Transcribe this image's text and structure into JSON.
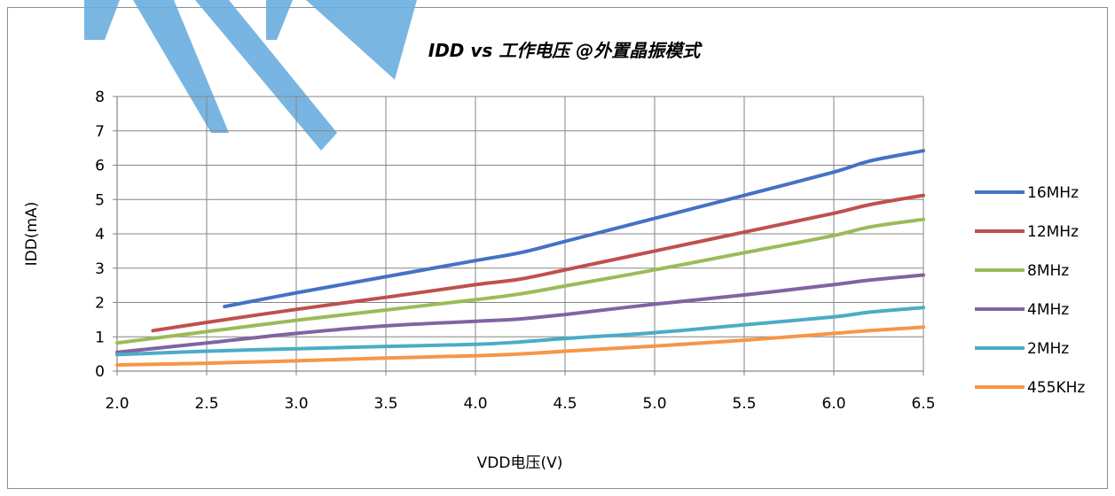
{
  "chart_data": {
    "type": "line",
    "title": "IDD vs 工作电压 @外置晶振模式",
    "xlabel": "VDD电压(V)",
    "ylabel": "IDD(mA)",
    "xlim": [
      2.0,
      6.5
    ],
    "ylim": [
      0,
      8
    ],
    "x_ticks": [
      "2.0",
      "2.5",
      "3.0",
      "3.5",
      "4.0",
      "4.5",
      "5.0",
      "5.5",
      "6.0",
      "6.5"
    ],
    "y_ticks": [
      "0",
      "1",
      "2",
      "3",
      "4",
      "5",
      "6",
      "7",
      "8"
    ],
    "grid": true,
    "legend_position": "right",
    "series": [
      {
        "name": "16MHz",
        "color": "#4472C4",
        "x": [
          2.6,
          3.0,
          3.5,
          4.0,
          4.25,
          4.5,
          5.0,
          5.5,
          6.0,
          6.2,
          6.5
        ],
        "y": [
          1.88,
          2.28,
          2.75,
          3.22,
          3.45,
          3.78,
          4.45,
          5.12,
          5.8,
          6.12,
          6.42
        ]
      },
      {
        "name": "12MHz",
        "color": "#C0504D",
        "x": [
          2.2,
          2.5,
          3.0,
          3.5,
          4.0,
          4.25,
          4.5,
          5.0,
          5.5,
          6.0,
          6.2,
          6.5
        ],
        "y": [
          1.18,
          1.42,
          1.8,
          2.15,
          2.52,
          2.68,
          2.95,
          3.5,
          4.05,
          4.6,
          4.85,
          5.12
        ]
      },
      {
        "name": "8MHz",
        "color": "#9BBB59",
        "x": [
          2.0,
          2.5,
          3.0,
          3.5,
          4.0,
          4.25,
          4.5,
          5.0,
          5.5,
          6.0,
          6.2,
          6.5
        ],
        "y": [
          0.82,
          1.15,
          1.48,
          1.78,
          2.08,
          2.25,
          2.48,
          2.95,
          3.45,
          3.95,
          4.2,
          4.42
        ]
      },
      {
        "name": "4MHz",
        "color": "#8064A2",
        "x": [
          2.0,
          2.5,
          3.0,
          3.5,
          4.0,
          4.25,
          4.5,
          5.0,
          5.5,
          6.0,
          6.2,
          6.5
        ],
        "y": [
          0.55,
          0.82,
          1.1,
          1.32,
          1.45,
          1.52,
          1.65,
          1.95,
          2.22,
          2.52,
          2.65,
          2.8
        ]
      },
      {
        "name": "2MHz",
        "color": "#4BACC6",
        "x": [
          2.0,
          2.5,
          3.0,
          3.5,
          4.0,
          4.25,
          4.5,
          5.0,
          5.5,
          6.0,
          6.2,
          6.5
        ],
        "y": [
          0.48,
          0.58,
          0.65,
          0.72,
          0.78,
          0.85,
          0.95,
          1.12,
          1.35,
          1.58,
          1.72,
          1.85
        ]
      },
      {
        "name": "455KHz",
        "color": "#F79646",
        "x": [
          2.0,
          2.5,
          3.0,
          3.5,
          4.0,
          4.25,
          4.5,
          5.0,
          5.5,
          6.0,
          6.2,
          6.5
        ],
        "y": [
          0.18,
          0.23,
          0.3,
          0.38,
          0.45,
          0.5,
          0.58,
          0.73,
          0.9,
          1.1,
          1.18,
          1.28
        ]
      }
    ]
  }
}
